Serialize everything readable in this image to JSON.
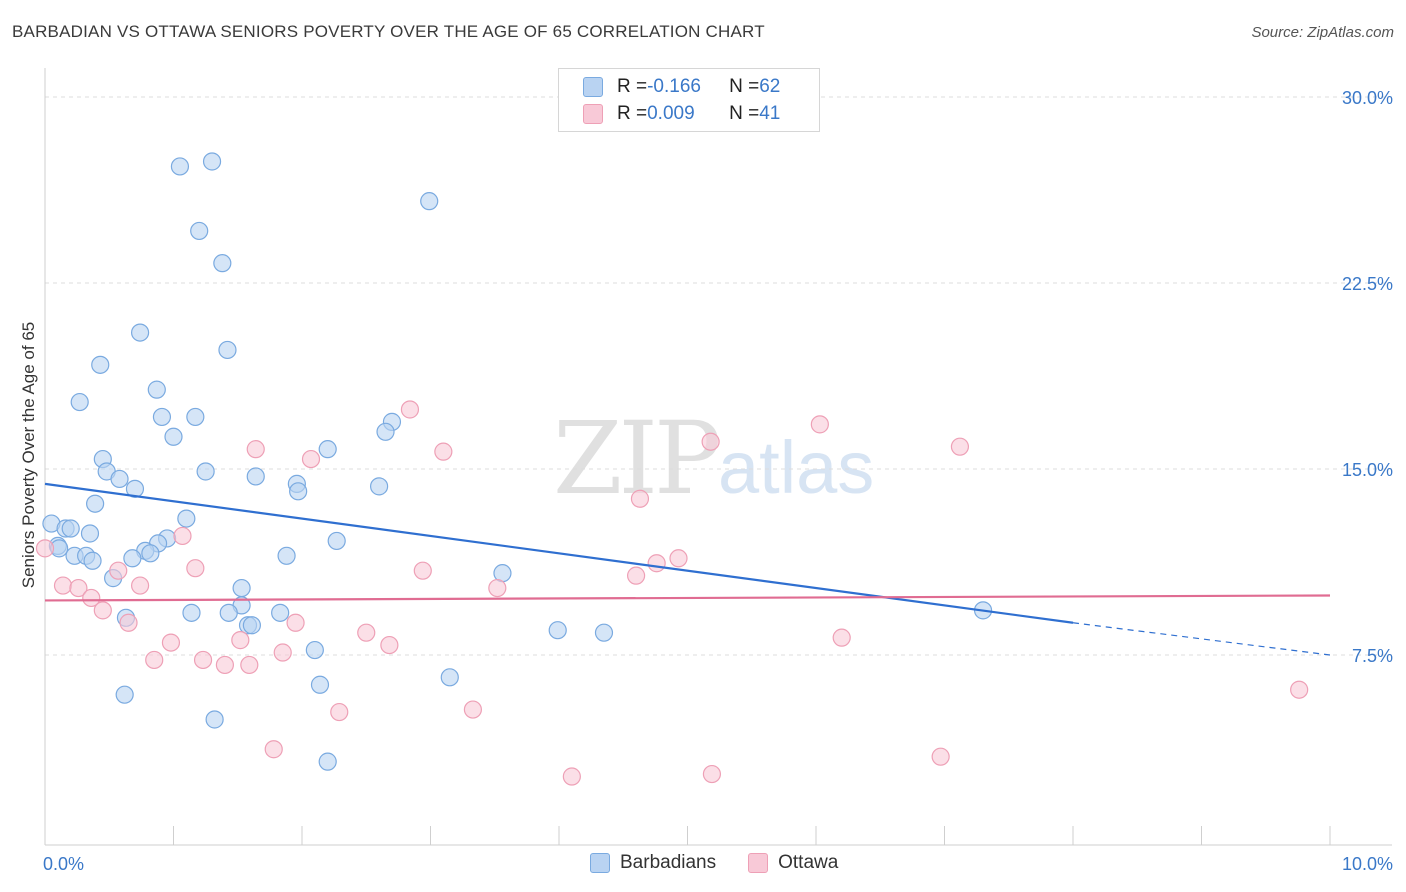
{
  "title": "BARBADIAN VS OTTAWA SENIORS POVERTY OVER THE AGE OF 65 CORRELATION CHART",
  "source": "Source: ZipAtlas.com",
  "watermark": {
    "zip": "ZIP",
    "atlas": "atlas"
  },
  "legend": {
    "rows": [
      {
        "r_label": "R = ",
        "r_value": "-0.166",
        "n_label": "N = ",
        "n_value": "62"
      },
      {
        "r_label": "R = ",
        "r_value": "0.009",
        "n_label": "N = ",
        "n_value": "41"
      }
    ]
  },
  "bottom_legend": {
    "barbadians": "Barbadians",
    "ottawa": "Ottawa"
  },
  "chart_data": {
    "type": "scatter",
    "title": "BARBADIAN VS OTTAWA SENIORS POVERTY OVER THE AGE OF 65 CORRELATION CHART",
    "xlabel": "",
    "ylabel": "Seniors Poverty Over the Age of 65",
    "xlim": [
      0,
      10
    ],
    "ylim": [
      0,
      31
    ],
    "x_tick_labels": [
      "0.0%",
      "10.0%"
    ],
    "y_ticks": [
      7.5,
      15,
      22.5,
      30
    ],
    "y_tick_labels": [
      "7.5%",
      "15.0%",
      "22.5%",
      "30.0%"
    ],
    "grid": true,
    "legend_position": "top-center",
    "series": [
      {
        "name": "Barbadians",
        "color": "#7aaae0",
        "fill": "#b9d3f2",
        "trend": {
          "x1": 0.0,
          "y1": 14.4,
          "x2": 8.0,
          "y2": 8.8,
          "dashed_to": 10.0,
          "dashed_y": 7.5,
          "color": "#2f6fd0"
        },
        "points": [
          {
            "x": 1.05,
            "y": 27.2
          },
          {
            "x": 1.3,
            "y": 27.4
          },
          {
            "x": 2.99,
            "y": 25.8
          },
          {
            "x": 1.2,
            "y": 24.6
          },
          {
            "x": 1.38,
            "y": 23.3
          },
          {
            "x": 0.74,
            "y": 20.5
          },
          {
            "x": 1.42,
            "y": 19.8
          },
          {
            "x": 0.43,
            "y": 19.2
          },
          {
            "x": 0.87,
            "y": 18.2
          },
          {
            "x": 0.27,
            "y": 17.7
          },
          {
            "x": 0.91,
            "y": 17.1
          },
          {
            "x": 1.17,
            "y": 17.1
          },
          {
            "x": 2.7,
            "y": 16.9
          },
          {
            "x": 2.65,
            "y": 16.5
          },
          {
            "x": 1.0,
            "y": 16.3
          },
          {
            "x": 2.2,
            "y": 15.8
          },
          {
            "x": 0.45,
            "y": 15.4
          },
          {
            "x": 0.48,
            "y": 14.9
          },
          {
            "x": 1.25,
            "y": 14.9
          },
          {
            "x": 1.64,
            "y": 14.7
          },
          {
            "x": 0.58,
            "y": 14.6
          },
          {
            "x": 1.96,
            "y": 14.4
          },
          {
            "x": 0.7,
            "y": 14.2
          },
          {
            "x": 2.6,
            "y": 14.3
          },
          {
            "x": 1.97,
            "y": 14.1
          },
          {
            "x": 0.39,
            "y": 13.6
          },
          {
            "x": 1.1,
            "y": 13.0
          },
          {
            "x": 0.05,
            "y": 12.8
          },
          {
            "x": 0.16,
            "y": 12.6
          },
          {
            "x": 0.2,
            "y": 12.6
          },
          {
            "x": 0.35,
            "y": 12.4
          },
          {
            "x": 0.95,
            "y": 12.2
          },
          {
            "x": 2.27,
            "y": 12.1
          },
          {
            "x": 0.88,
            "y": 12.0
          },
          {
            "x": 0.1,
            "y": 11.9
          },
          {
            "x": 0.78,
            "y": 11.7
          },
          {
            "x": 0.82,
            "y": 11.6
          },
          {
            "x": 0.23,
            "y": 11.5
          },
          {
            "x": 0.32,
            "y": 11.5
          },
          {
            "x": 1.88,
            "y": 11.5
          },
          {
            "x": 0.68,
            "y": 11.4
          },
          {
            "x": 0.53,
            "y": 10.6
          },
          {
            "x": 3.56,
            "y": 10.8
          },
          {
            "x": 1.53,
            "y": 10.2
          },
          {
            "x": 1.53,
            "y": 9.5
          },
          {
            "x": 1.14,
            "y": 9.2
          },
          {
            "x": 1.43,
            "y": 9.2
          },
          {
            "x": 1.83,
            "y": 9.2
          },
          {
            "x": 7.3,
            "y": 9.3
          },
          {
            "x": 0.63,
            "y": 9.0
          },
          {
            "x": 1.58,
            "y": 8.7
          },
          {
            "x": 1.61,
            "y": 8.7
          },
          {
            "x": 3.99,
            "y": 8.5
          },
          {
            "x": 4.35,
            "y": 8.4
          },
          {
            "x": 2.1,
            "y": 7.7
          },
          {
            "x": 3.15,
            "y": 6.6
          },
          {
            "x": 2.14,
            "y": 6.3
          },
          {
            "x": 0.62,
            "y": 5.9
          },
          {
            "x": 1.32,
            "y": 4.9
          },
          {
            "x": 2.2,
            "y": 3.2
          },
          {
            "x": 0.11,
            "y": 11.8
          },
          {
            "x": 0.37,
            "y": 11.3
          }
        ]
      },
      {
        "name": "Ottawa",
        "color": "#eea0b6",
        "fill": "#f8c9d7",
        "trend": {
          "x1": 0.0,
          "y1": 9.7,
          "x2": 10.0,
          "y2": 9.9,
          "color": "#e06c92"
        },
        "points": [
          {
            "x": 2.84,
            "y": 17.4
          },
          {
            "x": 6.03,
            "y": 16.8
          },
          {
            "x": 5.18,
            "y": 16.1
          },
          {
            "x": 7.12,
            "y": 15.9
          },
          {
            "x": 1.64,
            "y": 15.8
          },
          {
            "x": 3.1,
            "y": 15.7
          },
          {
            "x": 2.07,
            "y": 15.4
          },
          {
            "x": 4.63,
            "y": 13.8
          },
          {
            "x": 1.07,
            "y": 12.3
          },
          {
            "x": 0.0,
            "y": 11.8
          },
          {
            "x": 4.93,
            "y": 11.4
          },
          {
            "x": 4.76,
            "y": 11.2
          },
          {
            "x": 1.17,
            "y": 11.0
          },
          {
            "x": 2.94,
            "y": 10.9
          },
          {
            "x": 0.57,
            "y": 10.9
          },
          {
            "x": 4.6,
            "y": 10.7
          },
          {
            "x": 0.14,
            "y": 10.3
          },
          {
            "x": 0.74,
            "y": 10.3
          },
          {
            "x": 0.26,
            "y": 10.2
          },
          {
            "x": 3.52,
            "y": 10.2
          },
          {
            "x": 0.36,
            "y": 9.8
          },
          {
            "x": 0.45,
            "y": 9.3
          },
          {
            "x": 0.65,
            "y": 8.8
          },
          {
            "x": 1.95,
            "y": 8.8
          },
          {
            "x": 2.5,
            "y": 8.4
          },
          {
            "x": 6.2,
            "y": 8.2
          },
          {
            "x": 1.52,
            "y": 8.1
          },
          {
            "x": 0.98,
            "y": 8.0
          },
          {
            "x": 2.68,
            "y": 7.9
          },
          {
            "x": 1.85,
            "y": 7.6
          },
          {
            "x": 0.85,
            "y": 7.3
          },
          {
            "x": 1.23,
            "y": 7.3
          },
          {
            "x": 1.4,
            "y": 7.1
          },
          {
            "x": 1.59,
            "y": 7.1
          },
          {
            "x": 9.76,
            "y": 6.1
          },
          {
            "x": 3.33,
            "y": 5.3
          },
          {
            "x": 2.29,
            "y": 5.2
          },
          {
            "x": 1.78,
            "y": 3.7
          },
          {
            "x": 6.97,
            "y": 3.4
          },
          {
            "x": 4.1,
            "y": 2.6
          },
          {
            "x": 5.19,
            "y": 2.7
          }
        ]
      }
    ]
  }
}
